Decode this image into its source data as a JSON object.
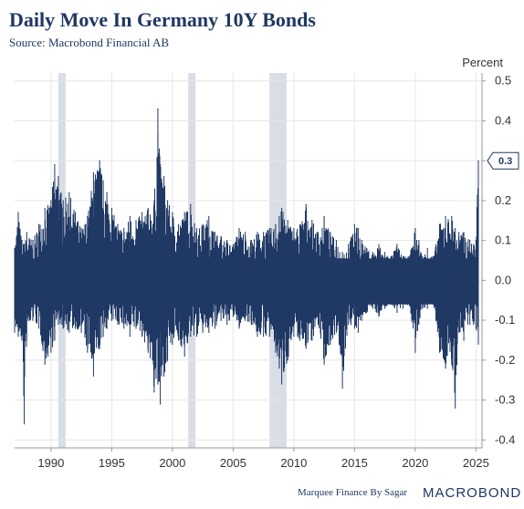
{
  "chart_data": {
    "type": "line",
    "title": "Daily Move In Germany 10Y Bonds",
    "subtitle": "Source: Macrobond Financial AB",
    "unit_label": "Percent",
    "line_color": "#1f3864",
    "shade_color": "#d9dde6",
    "xlim": [
      1987.0,
      2025.5
    ],
    "ylim": [
      -0.42,
      0.52
    ],
    "x_ticks": [
      1990,
      1995,
      2000,
      2005,
      2010,
      2015,
      2020,
      2025
    ],
    "x_tick_labels": [
      "1990",
      "1995",
      "2000",
      "2005",
      "2010",
      "2015",
      "2020",
      "2025"
    ],
    "y_ticks": [
      0.5,
      0.4,
      0.3,
      0.2,
      0.1,
      0.0,
      -0.1,
      -0.2,
      -0.3,
      -0.4
    ],
    "y_tick_labels": [
      "0.5",
      "0.4",
      "0.3",
      "0.2",
      "0.1",
      "0.0",
      "-0.1",
      "-0.2",
      "-0.3",
      "-0.4"
    ],
    "recession_bands": [
      [
        1990.6,
        1991.2
      ],
      [
        2001.3,
        2001.9
      ],
      [
        2008.0,
        2009.4
      ]
    ],
    "last_value_label": "0.3",
    "series": [
      {
        "values_note": "",
        "x": [
          1987.0,
          1987.3,
          1987.6,
          1987.8,
          1988.0,
          1988.5,
          1989.0,
          1989.5,
          1990.0,
          1990.3,
          1990.6,
          1991.0,
          1991.5,
          1992.0,
          1992.5,
          1993.0,
          1993.5,
          1994.0,
          1994.3,
          1994.6,
          1995.0,
          1995.5,
          1996.0,
          1996.5,
          1997.0,
          1997.5,
          1998.0,
          1998.5,
          1998.8,
          1999.0,
          1999.3,
          1999.6,
          2000.0,
          2000.5,
          2001.0,
          2001.5,
          2002.0,
          2002.5,
          2003.0,
          2003.5,
          2004.0,
          2004.5,
          2005.0,
          2005.5,
          2006.0,
          2006.5,
          2007.0,
          2007.5,
          2008.0,
          2008.5,
          2008.8,
          2009.0,
          2009.5,
          2010.0,
          2010.5,
          2011.0,
          2011.5,
          2012.0,
          2012.5,
          2013.0,
          2013.5,
          2014.0,
          2014.5,
          2015.0,
          2015.3,
          2015.6,
          2016.0,
          2016.5,
          2017.0,
          2017.5,
          2018.0,
          2018.5,
          2019.0,
          2019.5,
          2020.0,
          2020.3,
          2020.6,
          2021.0,
          2021.5,
          2022.0,
          2022.5,
          2023.0,
          2023.3,
          2023.6,
          2024.0,
          2024.5,
          2024.8,
          2025.0,
          2025.2
        ],
        "high": [
          0.08,
          0.17,
          0.1,
          0.09,
          0.12,
          0.1,
          0.14,
          0.18,
          0.2,
          0.29,
          0.26,
          0.2,
          0.22,
          0.17,
          0.13,
          0.16,
          0.27,
          0.3,
          0.25,
          0.22,
          0.18,
          0.14,
          0.13,
          0.16,
          0.15,
          0.17,
          0.18,
          0.2,
          0.43,
          0.29,
          0.26,
          0.2,
          0.17,
          0.14,
          0.17,
          0.19,
          0.13,
          0.14,
          0.16,
          0.12,
          0.11,
          0.1,
          0.09,
          0.13,
          0.12,
          0.1,
          0.12,
          0.12,
          0.13,
          0.14,
          0.16,
          0.18,
          0.15,
          0.13,
          0.14,
          0.19,
          0.15,
          0.12,
          0.16,
          0.12,
          0.1,
          0.07,
          0.09,
          0.14,
          0.13,
          0.1,
          0.08,
          0.07,
          0.09,
          0.07,
          0.06,
          0.09,
          0.06,
          0.06,
          0.13,
          0.1,
          0.06,
          0.08,
          0.06,
          0.14,
          0.16,
          0.16,
          0.13,
          0.12,
          0.12,
          0.1,
          0.09,
          0.1,
          0.3
        ],
        "low": [
          -0.13,
          -0.14,
          -0.15,
          -0.36,
          -0.15,
          -0.1,
          -0.12,
          -0.21,
          -0.18,
          -0.15,
          -0.11,
          -0.12,
          -0.13,
          -0.12,
          -0.13,
          -0.18,
          -0.24,
          -0.17,
          -0.14,
          -0.12,
          -0.1,
          -0.11,
          -0.12,
          -0.14,
          -0.12,
          -0.14,
          -0.18,
          -0.28,
          -0.26,
          -0.31,
          -0.24,
          -0.2,
          -0.16,
          -0.15,
          -0.19,
          -0.14,
          -0.14,
          -0.13,
          -0.13,
          -0.12,
          -0.1,
          -0.11,
          -0.09,
          -0.12,
          -0.1,
          -0.11,
          -0.14,
          -0.14,
          -0.14,
          -0.18,
          -0.22,
          -0.26,
          -0.2,
          -0.14,
          -0.15,
          -0.17,
          -0.15,
          -0.11,
          -0.21,
          -0.16,
          -0.13,
          -0.27,
          -0.11,
          -0.12,
          -0.13,
          -0.1,
          -0.08,
          -0.07,
          -0.09,
          -0.07,
          -0.06,
          -0.08,
          -0.07,
          -0.06,
          -0.18,
          -0.11,
          -0.07,
          -0.07,
          -0.06,
          -0.18,
          -0.22,
          -0.21,
          -0.32,
          -0.13,
          -0.15,
          -0.11,
          -0.11,
          -0.12,
          -0.16
        ]
      }
    ],
    "footer_text": "Marquee Finance By Sagar",
    "brand_text": "MACROBOND"
  }
}
